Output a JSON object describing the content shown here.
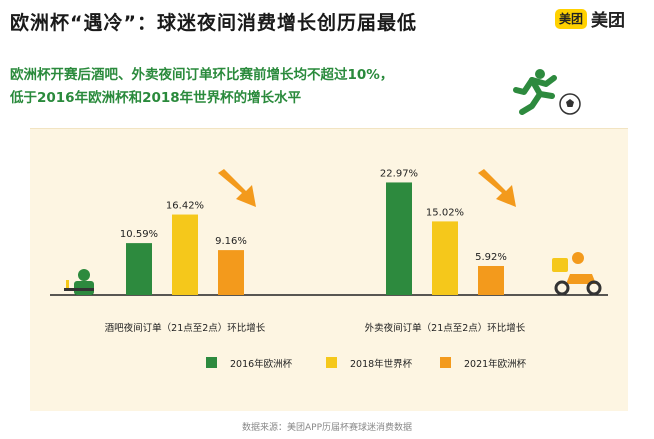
{
  "title": "欧洲杯“遇冷”：球迷夜间消费增长创历届最低",
  "logo": {
    "badge": "美团",
    "text": "美团"
  },
  "subtitle": [
    "欧洲杯开赛后酒吧、外卖夜间订单环比赛前增长均不超过10%，",
    "低于2016年欧洲杯和2018年世界杯的增长水平"
  ],
  "source": "数据来源：美团APP历届杯赛球迷消费数据",
  "icons": [
    "running-man-icon",
    "soccer-ball-icon",
    "bar-desk-icon",
    "delivery-rider-icon",
    "down-trend-arrow-icon"
  ],
  "colors": {
    "s2016": "#2d8a3e",
    "s2018": "#f5c81b",
    "s2021": "#f39a1c",
    "subtitle": "#2a8a3c",
    "panel": "#fdf5e2",
    "arrow": "#f39a1c"
  },
  "chart_data": {
    "type": "bar",
    "categories": [
      "酒吧夜间订单（21点至2点）环比增长",
      "外卖夜间订单（21点至2点）环比增长"
    ],
    "series": [
      {
        "name": "2016年欧洲杯",
        "values": [
          10.59,
          22.97
        ],
        "labels": [
          "10.59%",
          "22.97%"
        ]
      },
      {
        "name": "2018年世界杯",
        "values": [
          16.42,
          15.02
        ],
        "labels": [
          "16.42%",
          "15.02%"
        ]
      },
      {
        "name": "2021年欧洲杯",
        "values": [
          9.16,
          5.92
        ],
        "labels": [
          "9.16%",
          "5.92%"
        ]
      }
    ],
    "legend_position": "bottom",
    "grid": false
  }
}
